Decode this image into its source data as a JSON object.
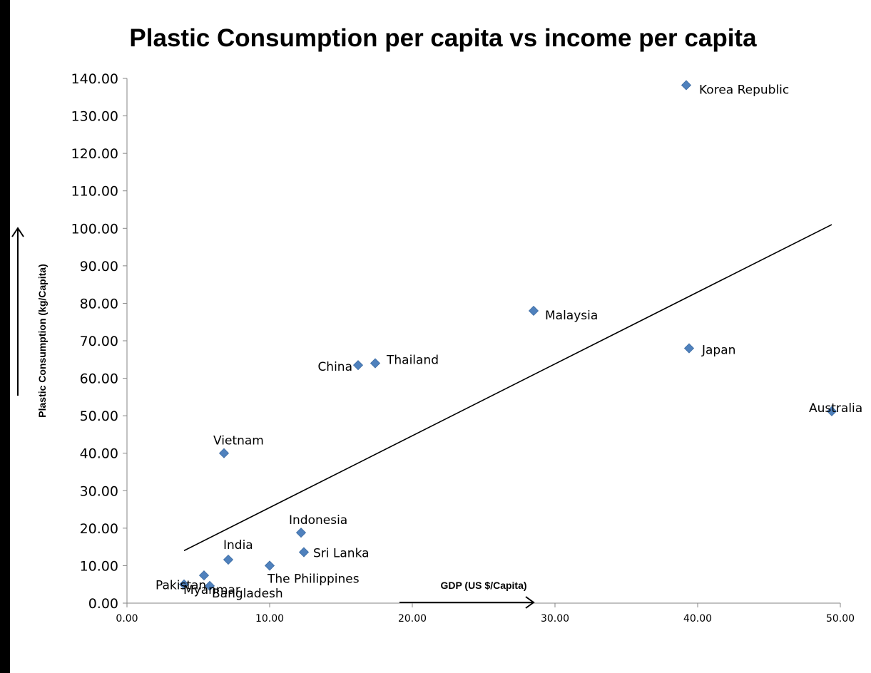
{
  "chart_data": {
    "type": "scatter",
    "title": "Plastic Consumption per capita vs income per capita",
    "xlabel": "GDP (US $/Capita)",
    "ylabel": "Plastic Consumption (kg/Capita)",
    "xlim": [
      0,
      50
    ],
    "ylim": [
      0,
      140
    ],
    "x_ticks": [
      "0.00",
      "10.00",
      "20.00",
      "30.00",
      "40.00",
      "50.00"
    ],
    "y_ticks": [
      "0.00",
      "10.00",
      "20.00",
      "30.00",
      "40.00",
      "50.00",
      "60.00",
      "70.00",
      "80.00",
      "90.00",
      "100.00",
      "110.00",
      "120.00",
      "130.00",
      "140.00"
    ],
    "grid": false,
    "marker_color": "#4f81bd",
    "series": [
      {
        "points": [
          {
            "label": "Korea Republic",
            "x": 39.2,
            "y": 138.2
          },
          {
            "label": "Malaysia",
            "x": 28.5,
            "y": 78.0
          },
          {
            "label": "Japan",
            "x": 39.4,
            "y": 68.0
          },
          {
            "label": "China",
            "x": 16.2,
            "y": 63.5
          },
          {
            "label": "Thailand",
            "x": 17.4,
            "y": 64.0
          },
          {
            "label": "Australia",
            "x": 49.4,
            "y": 51.2
          },
          {
            "label": "Vietnam",
            "x": 6.8,
            "y": 40.0
          },
          {
            "label": "Indonesia",
            "x": 12.2,
            "y": 18.8
          },
          {
            "label": "Sri Lanka",
            "x": 12.4,
            "y": 13.6
          },
          {
            "label": "India",
            "x": 7.1,
            "y": 11.6
          },
          {
            "label": "The Philippines",
            "x": 10.0,
            "y": 10.0
          },
          {
            "label": "Myanmar",
            "x": 5.4,
            "y": 7.4
          },
          {
            "label": "Pakistan",
            "x": 4.0,
            "y": 5.0
          },
          {
            "label": "Bangladesh",
            "x": 5.8,
            "y": 4.6
          }
        ]
      }
    ],
    "trendline": {
      "type": "linear",
      "x_range": [
        4.0,
        49.4
      ],
      "y_start": 14.0,
      "y_end": 101.0
    }
  }
}
